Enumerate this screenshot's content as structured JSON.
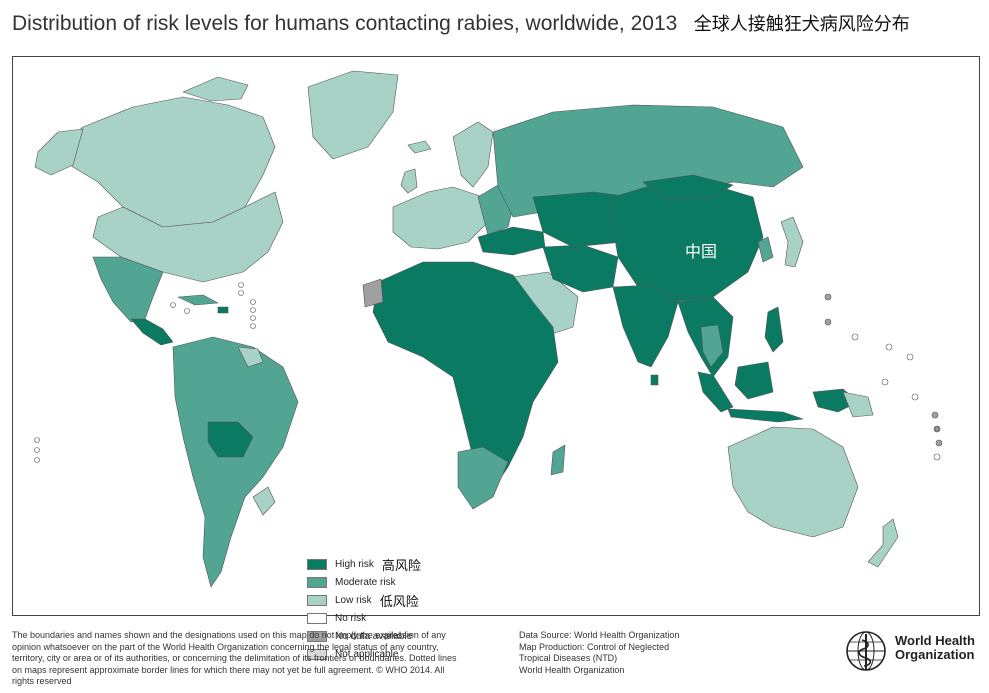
{
  "title": {
    "english": "Distribution of risk levels for humans contacting rabies, worldwide, 2013",
    "chinese": "全球人接触狂犬病风险分布"
  },
  "map": {
    "country_label": "中国",
    "colors": {
      "high": "#0a7a63",
      "moderate": "#52a593",
      "low": "#a9d2c7",
      "no_risk": "#ffffff",
      "no_data": "#a0a0a0",
      "not_applicable": "#d9d9d9",
      "ocean": "#ffffff",
      "border": "#555555"
    }
  },
  "legend": {
    "items": [
      {
        "label": "High risk",
        "zh": "高风险",
        "color": "#0a7a63"
      },
      {
        "label": "Moderate risk",
        "zh": "",
        "color": "#52a593"
      },
      {
        "label": "Low risk",
        "zh": "低风险",
        "color": "#a9d2c7"
      },
      {
        "label": "No risk",
        "zh": "",
        "color": "#ffffff"
      },
      {
        "label": "No data available",
        "zh": "",
        "color": "#a0a0a0"
      },
      {
        "label": "Not applicable",
        "zh": "",
        "color": "#d9d9d9"
      }
    ]
  },
  "footer": {
    "disclaimer": "The boundaries and names shown and the designations used on this map do not imply the expression of any opinion whatsoever on the part of the World Health Organization concerning the legal status of any country, territory, city or area or of its authorities, or concerning the delimitation of its frontiers or boundaries. Dotted lines on maps represent approximate border lines for which there may not yet be full agreement. © WHO 2014. All rights reserved",
    "data_source": "Data Source: World Health Organization",
    "map_production_1": "Map Production: Control of Neglected",
    "map_production_2": "Tropical Diseases (NTD)",
    "map_production_3": "World Health Organization"
  },
  "who_logo": {
    "line1": "World Health",
    "line2": "Organization"
  }
}
